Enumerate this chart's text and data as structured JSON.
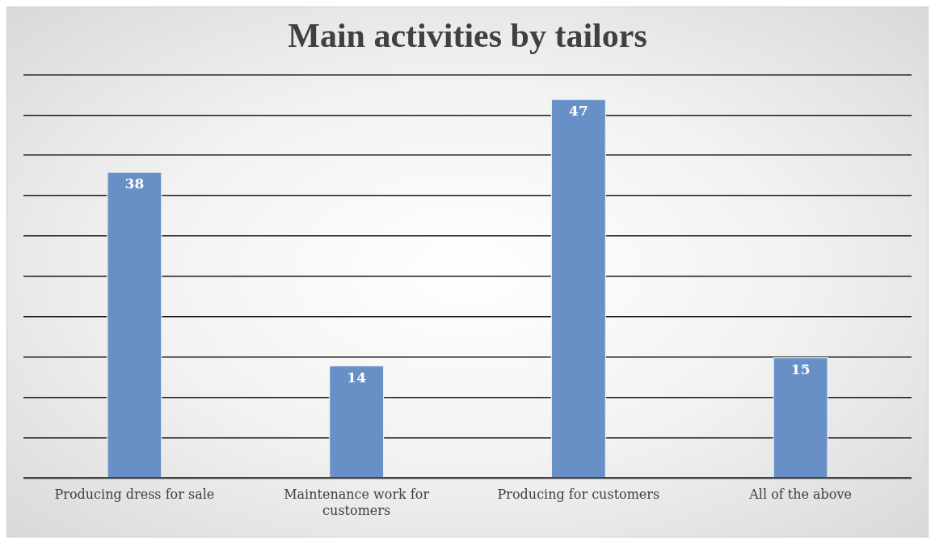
{
  "chart_data": {
    "type": "bar",
    "title": "Main activities by tailors",
    "categories": [
      "Producing dress for sale",
      "Maintenance work for customers",
      "Producing for customers",
      "All of the above"
    ],
    "values": [
      38,
      14,
      47,
      15
    ],
    "color": "#6890c6",
    "ylim": [
      0,
      50
    ],
    "tick_labels": "x",
    "grid": "y",
    "legend": false,
    "data_labels": true
  }
}
